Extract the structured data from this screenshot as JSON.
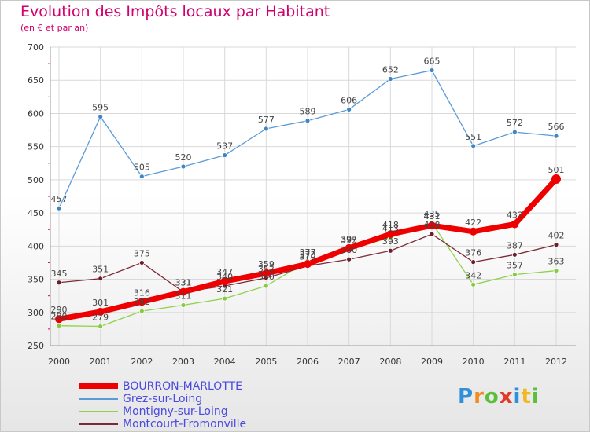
{
  "header": {
    "title": "Evolution des Impôts locaux par Habitant",
    "subtitle": "(en € et par an)"
  },
  "logo": {
    "text": "Proxiti"
  },
  "chart_data": {
    "type": "line",
    "title": "Evolution des Impôts locaux par Habitant",
    "subtitle": "(en € et par an)",
    "xlabel": "",
    "ylabel": "",
    "ylim": [
      250,
      700
    ],
    "yticks": [
      250,
      300,
      350,
      400,
      450,
      500,
      550,
      600,
      650,
      700
    ],
    "categories": [
      "2000",
      "2001",
      "2002",
      "2003",
      "2004",
      "2005",
      "2006",
      "2007",
      "2008",
      "2009",
      "2010",
      "2011",
      "2012"
    ],
    "grid": true,
    "legend_position": "bottom-left",
    "series": [
      {
        "name": "Grez-sur-Loing",
        "color": "#5b9bd5",
        "dot": "#3f86c6",
        "width": 1.3,
        "values": [
          457,
          595,
          505,
          520,
          537,
          577,
          589,
          606,
          652,
          665,
          551,
          572,
          566
        ]
      },
      {
        "name": "Montigny-sur-Loing",
        "color": "#8fd24a",
        "dot": "#84cc3c",
        "width": 1.3,
        "values": [
          280,
          279,
          302,
          311,
          321,
          340,
          377,
          395,
          413,
          435,
          342,
          357,
          363
        ]
      },
      {
        "name": "Montcourt-Fromonville",
        "color": "#7a2a36",
        "dot": "#6b1f2b",
        "width": 1.3,
        "values": [
          345,
          351,
          375,
          331,
          340,
          352,
          370,
          380,
          393,
          418,
          376,
          387,
          402
        ]
      },
      {
        "name": "BOURRON-MARLOTTE",
        "color": "#ee0000",
        "dot": "#ee0000",
        "width": 7,
        "values": [
          290,
          301,
          316,
          331,
          347,
          359,
          373,
          397,
          418,
          431,
          422,
          433,
          501
        ]
      }
    ],
    "legend": [
      "BOURRON-MARLOTTE",
      "Grez-sur-Loing",
      "Montigny-sur-Loing",
      "Montcourt-Fromonville"
    ]
  }
}
